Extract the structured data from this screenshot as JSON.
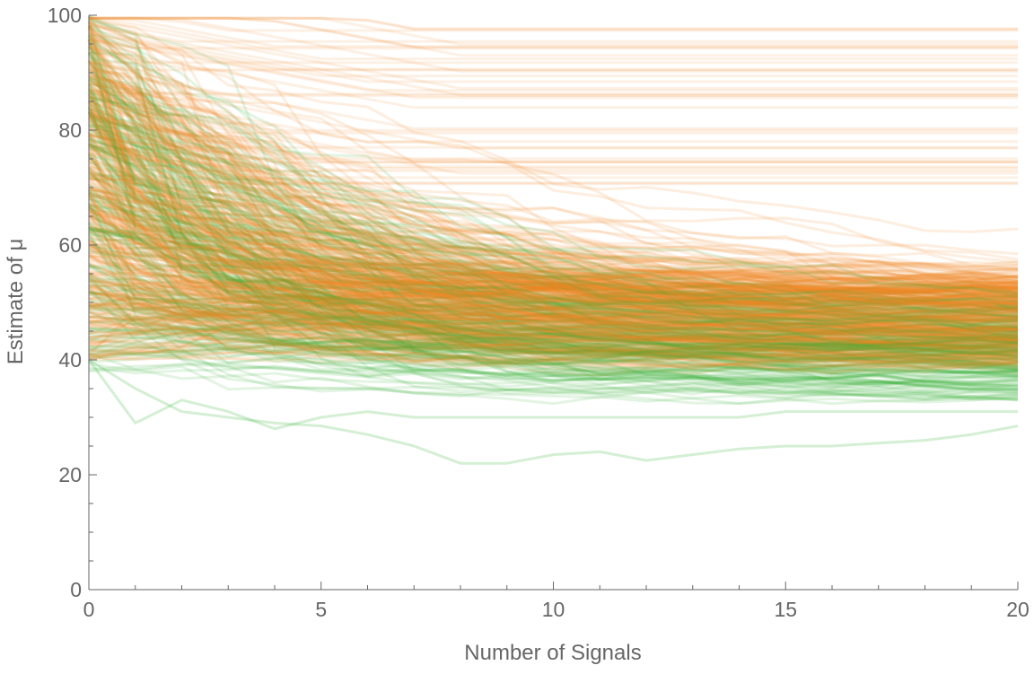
{
  "chart_data": {
    "type": "line",
    "title": "",
    "xlabel": "Number of Signals",
    "ylabel": "Estimate of μ",
    "xlim": [
      0,
      20
    ],
    "ylim": [
      0,
      100
    ],
    "x_ticks": [
      "0",
      "5",
      "10",
      "15",
      "20"
    ],
    "y_ticks": [
      "0",
      "20",
      "40",
      "60",
      "80",
      "100"
    ],
    "grid": false,
    "legend": "none",
    "colors": {
      "orange": "#f28522",
      "green": "#3cb43c",
      "axis": "#666666"
    },
    "series": [
      {
        "color": "orange",
        "count": 400,
        "x": [
          0,
          20
        ],
        "start_range": [
          40,
          100
        ],
        "end_mean": 47,
        "end_range": [
          31,
          97
        ]
      },
      {
        "color": "green",
        "count": 200,
        "x": [
          0,
          20
        ],
        "start_range": [
          38,
          100
        ],
        "end_mean": 42,
        "end_range": [
          28,
          60
        ]
      }
    ],
    "highlighted_paths": [
      {
        "color": "green",
        "x": [
          0,
          1,
          2,
          3,
          4,
          5,
          6,
          7,
          8,
          9,
          10,
          11,
          12,
          13,
          14,
          15,
          16,
          17,
          18,
          19,
          20
        ],
        "y": [
          40,
          35,
          31,
          30,
          29,
          28.5,
          27,
          25,
          22,
          22,
          23.5,
          24,
          22.5,
          23.5,
          24.5,
          25,
          25,
          25.5,
          26,
          27,
          28.5
        ]
      },
      {
        "color": "green",
        "x": [
          0,
          1,
          2,
          3,
          4,
          5,
          6,
          7,
          8,
          9,
          10,
          11,
          12,
          13,
          14,
          15,
          16,
          17,
          18,
          19,
          20
        ],
        "y": [
          40,
          29,
          33,
          31,
          28,
          30,
          31,
          30,
          30,
          30,
          30,
          30,
          30,
          30,
          30,
          31,
          31,
          31,
          31,
          31,
          31
        ]
      }
    ]
  }
}
